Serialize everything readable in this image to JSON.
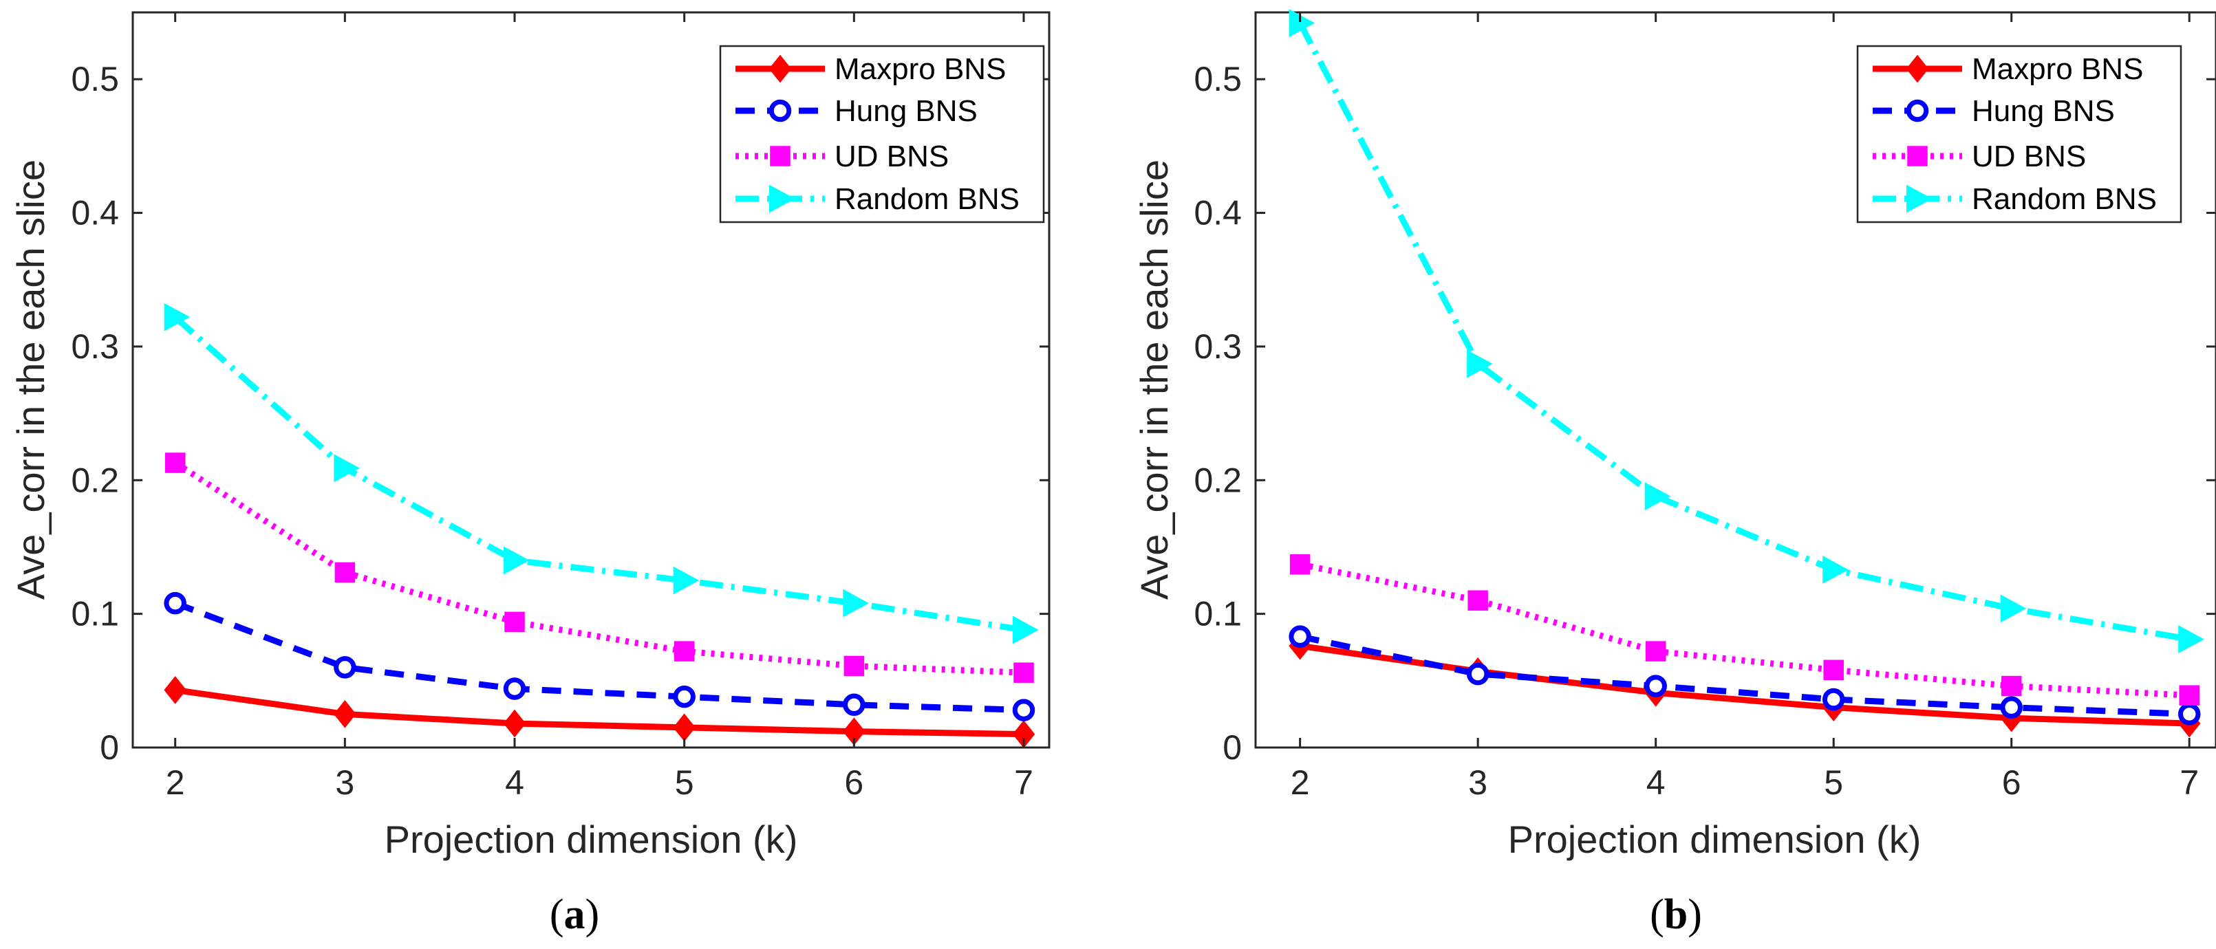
{
  "styles": {
    "Maxpro BNS": {
      "color": "#ff0000",
      "dash": "",
      "marker": "diamond"
    },
    "Hung BNS": {
      "color": "#0000ff",
      "dash": "28 18",
      "marker": "circle"
    },
    "UD BNS": {
      "color": "#ff00ff",
      "dash": "5 9",
      "marker": "square"
    },
    "Random BNS": {
      "color": "#00ffff",
      "dash": "34 12 5 12",
      "marker": "triangle-right"
    }
  },
  "chart_data": [
    {
      "type": "line",
      "panel": "(a)",
      "caption_letter": "a",
      "xlabel": "Projection dimension (k)",
      "ylabel": "Ave_corr in the each slice",
      "x": [
        2,
        3,
        4,
        5,
        6,
        7
      ],
      "xlim": [
        1.75,
        7.15
      ],
      "ylim": [
        0,
        0.55
      ],
      "xticks": [
        "2",
        "3",
        "4",
        "5",
        "6",
        "7"
      ],
      "yticks": [
        "0",
        "0.1",
        "0.2",
        "0.3",
        "0.4",
        "0.5"
      ],
      "ytick_values": [
        0,
        0.1,
        0.2,
        0.3,
        0.4,
        0.5
      ],
      "grid": false,
      "legend_position": "top-right",
      "series": [
        {
          "name": "Maxpro BNS",
          "values": [
            0.043,
            0.025,
            0.018,
            0.015,
            0.012,
            0.01
          ]
        },
        {
          "name": "Hung BNS",
          "values": [
            0.108,
            0.06,
            0.044,
            0.038,
            0.032,
            0.028
          ]
        },
        {
          "name": "UD BNS",
          "values": [
            0.213,
            0.131,
            0.094,
            0.072,
            0.061,
            0.056
          ]
        },
        {
          "name": "Random BNS",
          "values": [
            0.322,
            0.209,
            0.14,
            0.125,
            0.108,
            0.088
          ]
        }
      ]
    },
    {
      "type": "line",
      "panel": "(b)",
      "caption_letter": "b",
      "xlabel": "Projection dimension (k)",
      "ylabel": "Ave_corr in the each slice",
      "x": [
        2,
        3,
        4,
        5,
        6,
        7
      ],
      "xlim": [
        1.75,
        7.15
      ],
      "ylim": [
        0,
        0.55
      ],
      "xticks": [
        "2",
        "3",
        "4",
        "5",
        "6",
        "7"
      ],
      "yticks": [
        "0",
        "0.1",
        "0.2",
        "0.3",
        "0.4",
        "0.5"
      ],
      "ytick_values": [
        0,
        0.1,
        0.2,
        0.3,
        0.4,
        0.5
      ],
      "grid": false,
      "legend_position": "top-right",
      "series": [
        {
          "name": "Maxpro BNS",
          "values": [
            0.076,
            0.057,
            0.041,
            0.03,
            0.022,
            0.018
          ]
        },
        {
          "name": "Hung BNS",
          "values": [
            0.083,
            0.055,
            0.046,
            0.036,
            0.03,
            0.025
          ]
        },
        {
          "name": "UD BNS",
          "values": [
            0.137,
            0.11,
            0.072,
            0.058,
            0.046,
            0.039
          ]
        },
        {
          "name": "Random BNS",
          "values": [
            0.542,
            0.287,
            0.188,
            0.133,
            0.104,
            0.081
          ]
        }
      ]
    }
  ]
}
